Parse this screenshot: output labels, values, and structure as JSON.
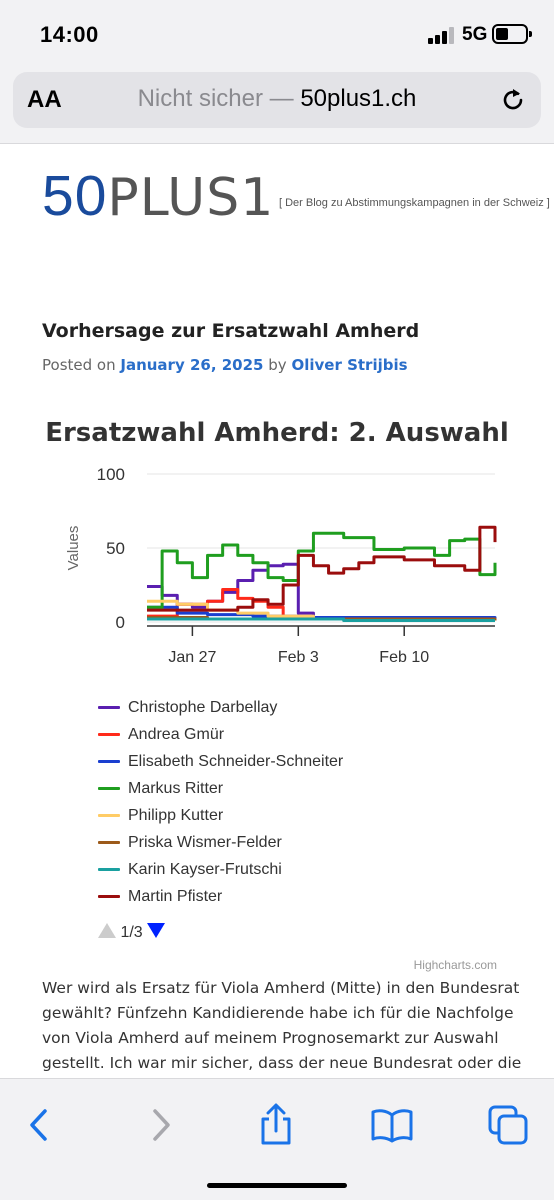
{
  "status_bar": {
    "time": "14:00",
    "network": "5G"
  },
  "address_bar": {
    "aa_label": "AA",
    "security_text": "Nicht sicher —",
    "host": "50plus1.ch"
  },
  "site": {
    "logo_num": "50",
    "logo_text": "PLUS1",
    "tagline": "[ Der Blog zu Abstimmungskampagnen in der Schweiz ]"
  },
  "post": {
    "title": "Vorhersage zur Ersatzwahl Amherd",
    "meta_prefix": "Posted on",
    "date": "January 26, 2025",
    "meta_by": "by",
    "author": "Oliver Strijbis",
    "body": "Wer wird als Ersatz für Viola Amherd (Mitte) in den Bundesrat gewählt? Fünfzehn Kandidierende habe ich für die Nachfolge von Viola Amherd auf meinem Prognosemarkt zur Auswahl gestellt. Ich war mir sicher, dass der neue Bundesrat oder die neue Bundesrätin bestimmt unter ihnen sein würde. Ich habe mich aber leider"
  },
  "chart_data": {
    "type": "line",
    "title": "Ersatzwahl Amherd: 2. Auswahl",
    "ylabel": "Values",
    "xlabel": "",
    "ylim": [
      0,
      100
    ],
    "yticks": [
      0,
      50,
      100
    ],
    "xlim": [
      "2025-01-24",
      "2025-02-16"
    ],
    "xticks": [
      {
        "date": "2025-01-27",
        "label": "Jan 27"
      },
      {
        "date": "2025-02-03",
        "label": "Feb 3"
      },
      {
        "date": "2025-02-10",
        "label": "Feb 10"
      }
    ],
    "grid": true,
    "legend_position": "bottom",
    "series": [
      {
        "name": "Christophe Darbellay",
        "color": "#5a1fb0",
        "points": [
          [
            "2025-01-24",
            24
          ],
          [
            "2025-01-25",
            18
          ],
          [
            "2025-01-26",
            12
          ],
          [
            "2025-01-27",
            10
          ],
          [
            "2025-01-28",
            14
          ],
          [
            "2025-01-29",
            20
          ],
          [
            "2025-01-30",
            28
          ],
          [
            "2025-01-31",
            35
          ],
          [
            "2025-02-01",
            38
          ],
          [
            "2025-02-02",
            39
          ],
          [
            "2025-02-03",
            6
          ],
          [
            "2025-02-04",
            2
          ],
          [
            "2025-02-16",
            1
          ]
        ]
      },
      {
        "name": "Andrea Gmür",
        "color": "#ff2a1a",
        "points": [
          [
            "2025-01-24",
            4
          ],
          [
            "2025-01-26",
            12
          ],
          [
            "2025-01-28",
            14
          ],
          [
            "2025-01-29",
            22
          ],
          [
            "2025-01-30",
            16
          ],
          [
            "2025-01-31",
            14
          ],
          [
            "2025-02-01",
            10
          ],
          [
            "2025-02-02",
            3
          ],
          [
            "2025-02-04",
            2
          ],
          [
            "2025-02-16",
            1
          ]
        ]
      },
      {
        "name": "Elisabeth Schneider-Schneiter",
        "color": "#1a3fd0",
        "points": [
          [
            "2025-01-24",
            10
          ],
          [
            "2025-01-26",
            6
          ],
          [
            "2025-01-28",
            5
          ],
          [
            "2025-01-31",
            4
          ],
          [
            "2025-02-03",
            3
          ],
          [
            "2025-02-16",
            1
          ]
        ]
      },
      {
        "name": "Markus Ritter",
        "color": "#1f9e1f",
        "points": [
          [
            "2025-01-24",
            10
          ],
          [
            "2025-01-25",
            48
          ],
          [
            "2025-01-26",
            40
          ],
          [
            "2025-01-27",
            30
          ],
          [
            "2025-01-28",
            45
          ],
          [
            "2025-01-29",
            52
          ],
          [
            "2025-01-30",
            45
          ],
          [
            "2025-01-31",
            40
          ],
          [
            "2025-02-01",
            30
          ],
          [
            "2025-02-02",
            28
          ],
          [
            "2025-02-03",
            48
          ],
          [
            "2025-02-04",
            60
          ],
          [
            "2025-02-06",
            57
          ],
          [
            "2025-02-08",
            49
          ],
          [
            "2025-02-10",
            50
          ],
          [
            "2025-02-12",
            45
          ],
          [
            "2025-02-13",
            55
          ],
          [
            "2025-02-14",
            56
          ],
          [
            "2025-02-15",
            32
          ],
          [
            "2025-02-16",
            40
          ]
        ]
      },
      {
        "name": "Philipp Kutter",
        "color": "#ffcc66",
        "points": [
          [
            "2025-01-24",
            14
          ],
          [
            "2025-01-26",
            12
          ],
          [
            "2025-01-28",
            8
          ],
          [
            "2025-01-30",
            6
          ],
          [
            "2025-02-01",
            4
          ],
          [
            "2025-02-04",
            2
          ],
          [
            "2025-02-16",
            2
          ]
        ]
      },
      {
        "name": "Priska Wismer-Felder",
        "color": "#9c5a1a",
        "points": [
          [
            "2025-01-24",
            3
          ],
          [
            "2025-01-28",
            2
          ],
          [
            "2025-02-04",
            2
          ],
          [
            "2025-02-16",
            1
          ]
        ]
      },
      {
        "name": "Karin Kayser-Frutschi",
        "color": "#1aa0a0",
        "points": [
          [
            "2025-01-24",
            2
          ],
          [
            "2025-01-30",
            2
          ],
          [
            "2025-02-06",
            1
          ],
          [
            "2025-02-16",
            1
          ]
        ]
      },
      {
        "name": "Martin Pfister",
        "color": "#9b0d0d",
        "points": [
          [
            "2025-01-24",
            8
          ],
          [
            "2025-01-27",
            8
          ],
          [
            "2025-01-30",
            10
          ],
          [
            "2025-01-31",
            15
          ],
          [
            "2025-02-01",
            12
          ],
          [
            "2025-02-02",
            25
          ],
          [
            "2025-02-03",
            45
          ],
          [
            "2025-02-04",
            38
          ],
          [
            "2025-02-05",
            33
          ],
          [
            "2025-02-06",
            36
          ],
          [
            "2025-02-07",
            40
          ],
          [
            "2025-02-08",
            44
          ],
          [
            "2025-02-10",
            42
          ],
          [
            "2025-02-12",
            38
          ],
          [
            "2025-02-14",
            35
          ],
          [
            "2025-02-15",
            64
          ],
          [
            "2025-02-16",
            54
          ]
        ]
      }
    ]
  },
  "legend_nav": {
    "page": "1/3"
  },
  "credits": "Highcharts.com",
  "toolbar": {
    "back": "chevron-left-icon",
    "forward": "chevron-right-icon",
    "share": "share-icon",
    "bookmarks": "book-icon",
    "tabs": "tabs-icon"
  }
}
